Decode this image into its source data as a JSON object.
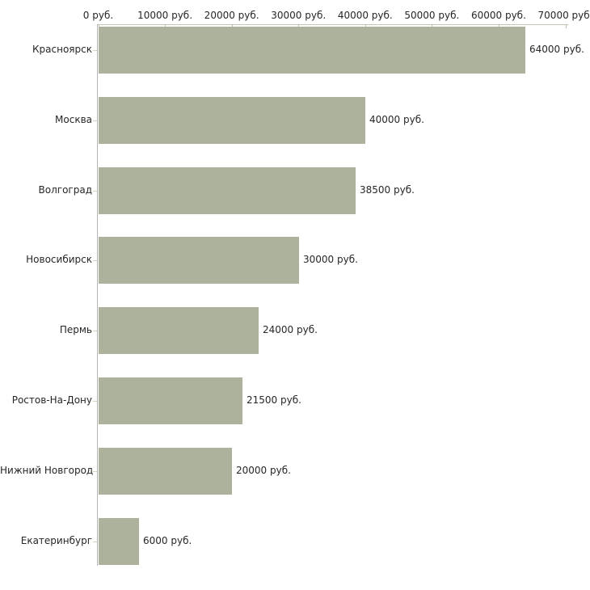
{
  "chart_data": {
    "type": "bar",
    "orientation": "horizontal",
    "title": "",
    "xlabel": "",
    "ylabel": "",
    "grid": false,
    "legend": false,
    "categories": [
      "Красноярск",
      "Москва",
      "Волгоград",
      "Новосибирск",
      "Пермь",
      "Ростов-На-Дону",
      "Нижний Новгород",
      "Екатеринбург"
    ],
    "values": [
      64000,
      40000,
      38500,
      30000,
      24000,
      21500,
      20000,
      6000
    ],
    "value_labels": [
      "64000 руб.",
      "40000 руб.",
      "38500 руб.",
      "30000 руб.",
      "24000 руб.",
      "21500 руб.",
      "20000 руб.",
      "6000 руб."
    ],
    "x_axis": {
      "position": "top",
      "xlim": [
        0,
        70000
      ],
      "tick_values": [
        0,
        10000,
        20000,
        30000,
        40000,
        50000,
        60000,
        70000
      ],
      "tick_labels": [
        "0 руб.",
        "10000 руб.",
        "20000 руб.",
        "30000 руб.",
        "40000 руб.",
        "50000 руб.",
        "60000 руб.",
        "70000 руб."
      ]
    },
    "colors": {
      "bar_fill": "#acb29b",
      "axis_line": "#c6c6ae",
      "tick_mark": "#c3bba6",
      "category_tick": "#d4d4c0",
      "vertical_axis": "#b3b3b3",
      "text": "#262626",
      "background": "#ffffff"
    }
  }
}
